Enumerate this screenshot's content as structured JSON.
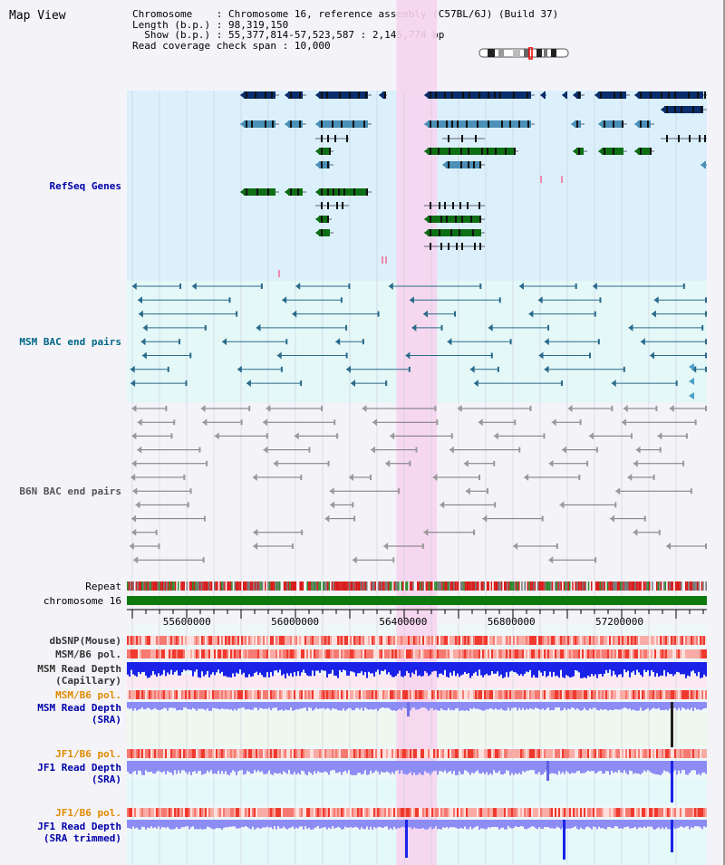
{
  "page_title": "Map View",
  "info": {
    "chromosome_key": "Chromosome",
    "chromosome_val": "Chromosome 16, reference assembly (C57BL/6J) (Build 37)",
    "length_key": "Length (b.p.)",
    "length_val": "98,319,150",
    "show_key": "Show (b.p.)",
    "show_val": "55,377,814-57,523,587 : 2,145,774 bp",
    "coverage_key": "Read coverage check span",
    "coverage_val": "10,000"
  },
  "tracks": {
    "refseq": "RefSeq Genes",
    "msm_bac": "MSM BAC end pairs",
    "b6n_bac": "B6N BAC end pairs",
    "repeat": "Repeat",
    "chromosome": "chromosome 16",
    "dbsnp": "dbSNP(Mouse)",
    "msm_b6_pol_1": "MSM/B6 pol.",
    "msm_depth_cap_1": "MSM Read Depth",
    "msm_depth_cap_2": "(Capillary)",
    "msm_b6_pol_2": "MSM/B6 pol.",
    "msm_depth_sra_1": "MSM Read Depth",
    "msm_depth_sra_2": "(SRA)",
    "jf1_b6_pol_1": "JF1/B6 pol.",
    "jf1_depth_sra_1": "JF1 Read Depth",
    "jf1_depth_sra_2": "(SRA)",
    "jf1_b6_pol_2": "JF1/B6 pol.",
    "jf1_depth_trim_1": "JF1 Read Depth",
    "jf1_depth_trim_2": "(SRA trimmed)"
  },
  "axis": {
    "min": 55377814,
    "max": 57523587,
    "ticks": [
      {
        "value": 55600000,
        "label": "55600000"
      },
      {
        "value": 56000000,
        "label": "56000000"
      },
      {
        "value": 56400000,
        "label": "56400000"
      },
      {
        "value": 56800000,
        "label": "56800000"
      },
      {
        "value": 57200000,
        "label": "57200000"
      }
    ],
    "highlight": [
      56375000,
      56525000
    ]
  },
  "colors": {
    "refseq_bg": "#dbf0fa",
    "bac_bg": "#e4f8f8",
    "b6n_bg": "#f4f4f8",
    "highlight": "#f6d4ee",
    "gene_navy": "#0a2d6b",
    "gene_blue": "#4a90b8",
    "gene_green": "#0e6e14",
    "msm_bac": "#2a6a8a",
    "b6n_bac": "#777777",
    "chromosome": "#0e7a0e",
    "depth_cap": "#1a22e8",
    "depth_sra": "#8c8cf4",
    "polymorphism": "#f05050"
  }
}
